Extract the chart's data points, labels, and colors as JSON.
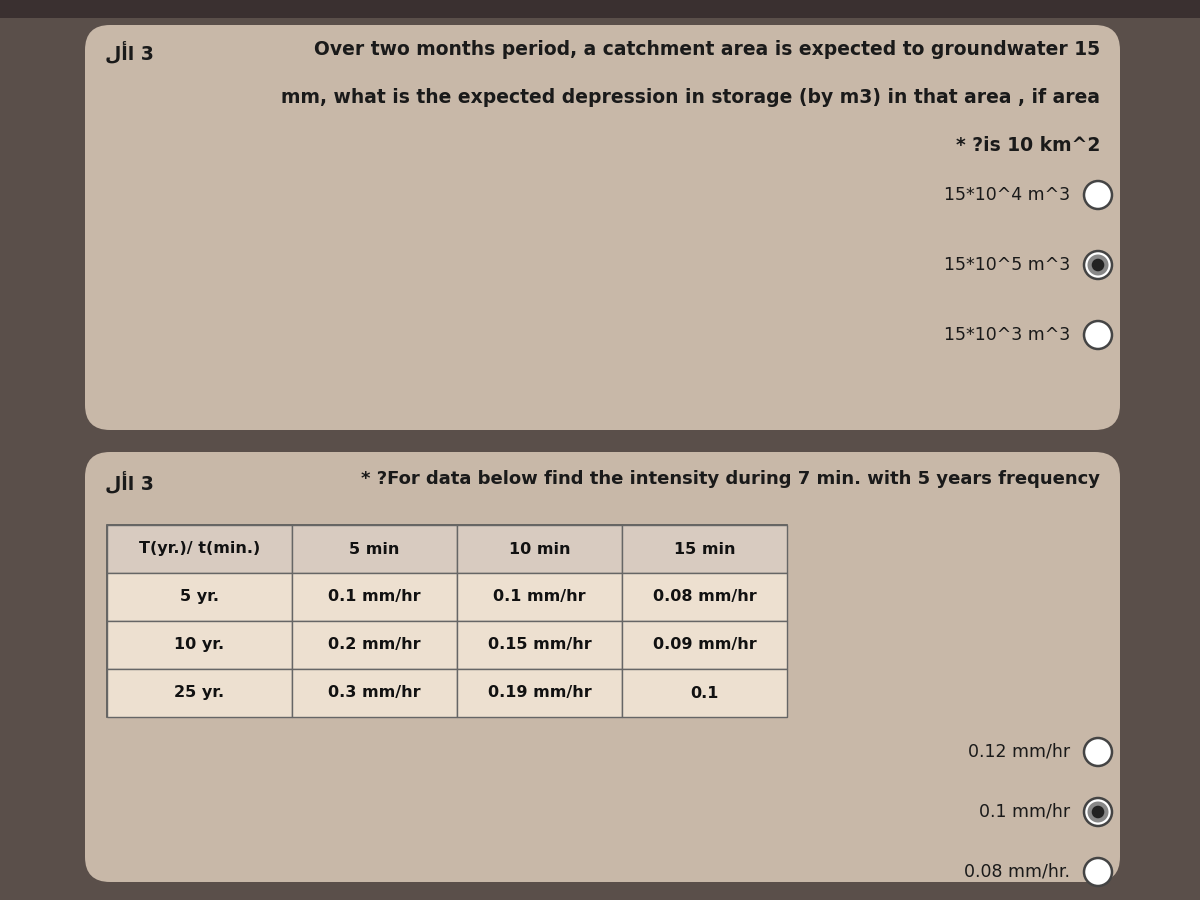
{
  "bg_color": "#5a4f4a",
  "card1_bg": "#c8b8a8",
  "card2_bg": "#c8b8a8",
  "q1_label": "لأا 3",
  "q1_line1": "Over two months period, a catchment area is expected to groundwater 15",
  "q1_line2": "mm, what is the expected depression in storage (by m3) in that area , if area",
  "q1_line3": "* ?is 10 km^2",
  "q1_options": [
    "15*10^4 m^3",
    "15*10^5 m^3",
    "15*10^3 m^3"
  ],
  "q1_selected": 1,
  "q2_label": "لأا 3",
  "q2_text": "* ?For data below find the intensity during 7 min. with 5 years frequency",
  "table_headers": [
    "T(yr.)/ t(min.)",
    "5 min",
    "10 min",
    "15 min"
  ],
  "table_rows": [
    [
      "5 yr.",
      "0.1 mm/hr",
      "0.1 mm/hr",
      "0.08 mm/hr"
    ],
    [
      "10 yr.",
      "0.2 mm/hr",
      "0.15 mm/hr",
      "0.09 mm/hr"
    ],
    [
      "25 yr.",
      "0.3 mm/hr",
      "0.19 mm/hr",
      "0.1"
    ]
  ],
  "q2_options": [
    "0.12 mm/hr",
    "0.1 mm/hr",
    "0.08 mm/hr."
  ],
  "q2_selected": 1,
  "title_fontsize": 13.5,
  "body_fontsize": 12,
  "option_fontsize": 12.5
}
